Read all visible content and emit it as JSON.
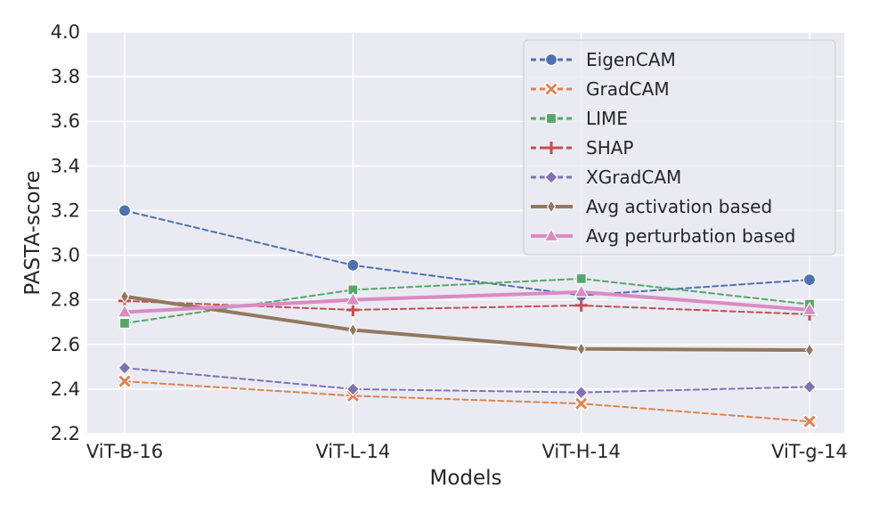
{
  "chart_data": {
    "type": "line",
    "title": "",
    "xlabel": "Models",
    "ylabel": "PASTA-score",
    "categories": [
      "ViT-B-16",
      "ViT-L-14",
      "ViT-H-14",
      "ViT-g-14"
    ],
    "ylim": [
      2.2,
      4.0
    ],
    "yticks": [
      "2.2",
      "2.4",
      "2.6",
      "2.8",
      "3.0",
      "3.2",
      "3.4",
      "3.6",
      "3.8",
      "4.0"
    ],
    "grid": true,
    "legend_position": "top-right",
    "series": [
      {
        "name": "EigenCAM",
        "values": [
          3.2,
          2.955,
          2.82,
          2.89
        ],
        "color": "#4c72b0",
        "marker": "circle",
        "dash": true,
        "width": 2
      },
      {
        "name": "GradCAM",
        "values": [
          2.435,
          2.37,
          2.335,
          2.255
        ],
        "color": "#dd8452",
        "marker": "x",
        "dash": true,
        "width": 2
      },
      {
        "name": "LIME",
        "values": [
          2.695,
          2.845,
          2.895,
          2.78
        ],
        "color": "#55a868",
        "marker": "square",
        "dash": true,
        "width": 2
      },
      {
        "name": "SHAP",
        "values": [
          2.795,
          2.755,
          2.775,
          2.735
        ],
        "color": "#c44e52",
        "marker": "plus",
        "dash": true,
        "width": 2
      },
      {
        "name": "XGradCAM",
        "values": [
          2.495,
          2.4,
          2.385,
          2.41
        ],
        "color": "#8172b3",
        "marker": "diamond",
        "dash": true,
        "width": 2
      },
      {
        "name": "Avg activation based",
        "values": [
          2.815,
          2.665,
          2.58,
          2.575
        ],
        "color": "#937860",
        "marker": "thin-diamond",
        "dash": false,
        "width": 4
      },
      {
        "name": "Avg perturbation based",
        "values": [
          2.745,
          2.8,
          2.835,
          2.755
        ],
        "color": "#da8bc3",
        "marker": "triangle",
        "dash": false,
        "width": 4
      }
    ]
  }
}
